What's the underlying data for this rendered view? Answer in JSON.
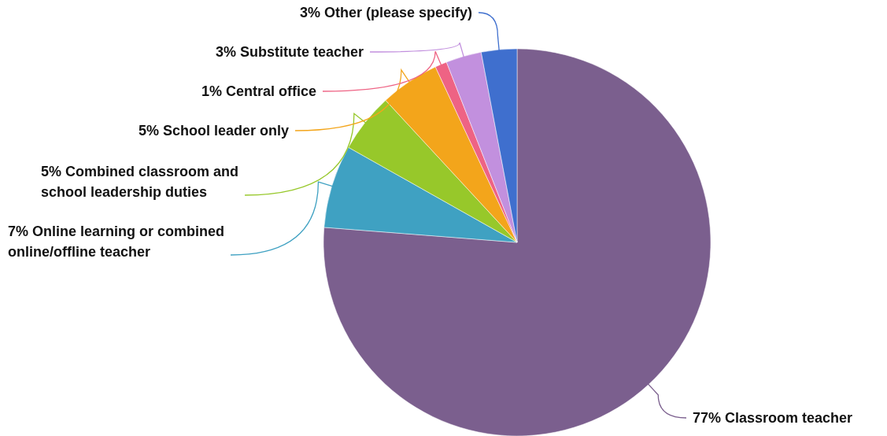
{
  "chart_data": {
    "type": "pie",
    "categories": [
      "Classroom teacher",
      "Online learning or combined online/offline teacher",
      "Combined classroom and school leadership duties",
      "School leader only",
      "Central office",
      "Substitute teacher",
      "Other (please specify)"
    ],
    "values": [
      77,
      7,
      5,
      5,
      1,
      3,
      3
    ],
    "value_labels": [
      "77%",
      "7%",
      "5%",
      "5%",
      "1%",
      "3%",
      "3%"
    ],
    "colors": [
      "#7b5f8e",
      "#3fa1c2",
      "#97c82a",
      "#f3a51b",
      "#ee6384",
      "#c290de",
      "#3f6fce"
    ]
  }
}
